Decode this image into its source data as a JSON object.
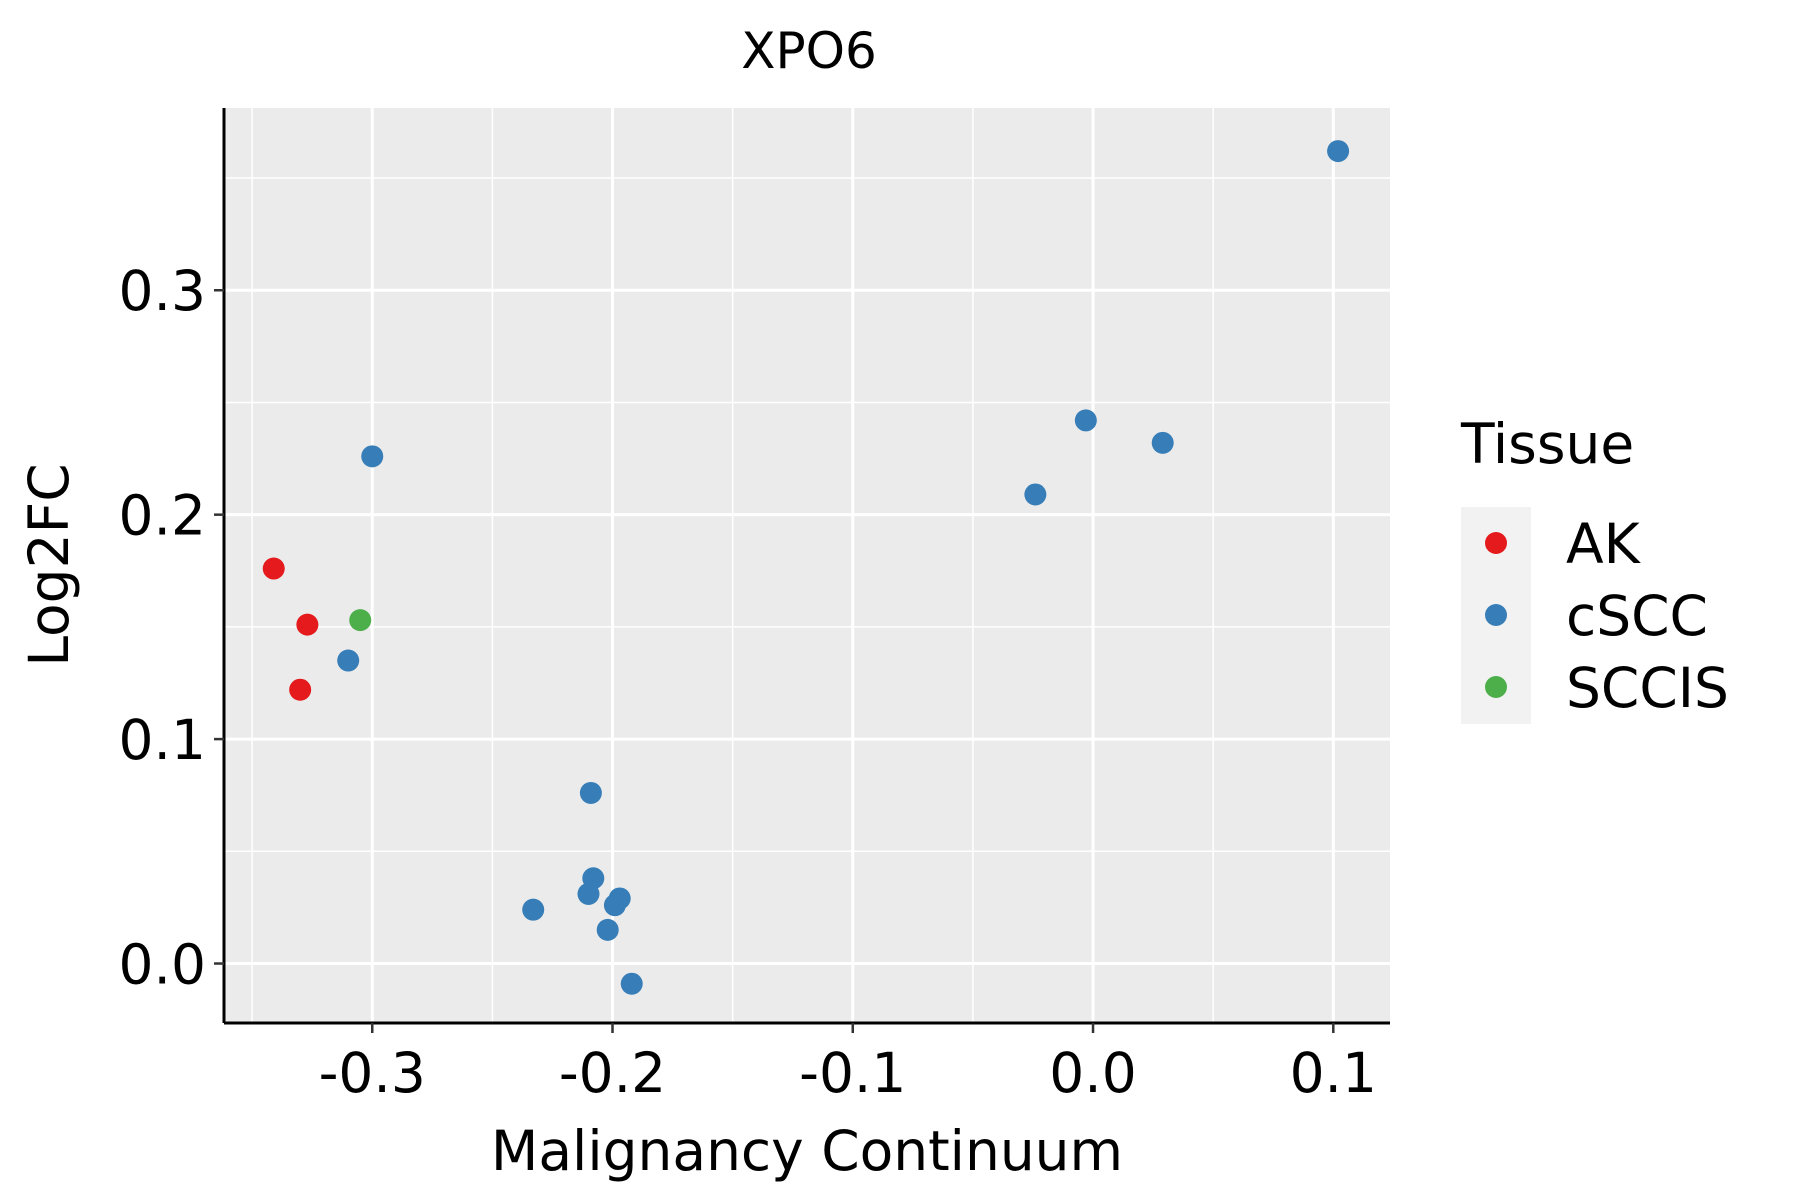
{
  "chart_data": {
    "type": "scatter",
    "title": "XPO6",
    "xlabel": "Malignancy Continuum",
    "ylabel": "Log2FC",
    "xlim": [
      -0.3617,
      0.1236
    ],
    "ylim": [
      -0.0265,
      0.3812
    ],
    "x_ticks": [
      -0.3,
      -0.2,
      -0.1,
      0.0,
      0.1
    ],
    "x_tick_labels": [
      "-0.3",
      "-0.2",
      "-0.1",
      "0.0",
      "0.1"
    ],
    "y_ticks": [
      0.0,
      0.1,
      0.2,
      0.3
    ],
    "y_tick_labels": [
      "0.0",
      "0.1",
      "0.2",
      "0.3"
    ],
    "grid": true,
    "legend": {
      "title": "Tissue",
      "position": "right",
      "entries": [
        {
          "label": "AK",
          "color": "#E41A1C"
        },
        {
          "label": "cSCC",
          "color": "#377EB8"
        },
        {
          "label": "SCCIS",
          "color": "#4DAF4A"
        }
      ]
    },
    "series": [
      {
        "name": "AK",
        "color": "#E41A1C",
        "points": [
          {
            "x": -0.341,
            "y": 0.176
          },
          {
            "x": -0.327,
            "y": 0.151
          },
          {
            "x": -0.33,
            "y": 0.122
          }
        ]
      },
      {
        "name": "cSCC",
        "color": "#377EB8",
        "points": [
          {
            "x": -0.3,
            "y": 0.226
          },
          {
            "x": -0.31,
            "y": 0.135
          },
          {
            "x": -0.209,
            "y": 0.076
          },
          {
            "x": -0.208,
            "y": 0.038
          },
          {
            "x": -0.21,
            "y": 0.031
          },
          {
            "x": -0.197,
            "y": 0.029
          },
          {
            "x": -0.199,
            "y": 0.026
          },
          {
            "x": -0.233,
            "y": 0.024
          },
          {
            "x": -0.202,
            "y": 0.015
          },
          {
            "x": -0.192,
            "y": -0.009
          },
          {
            "x": -0.024,
            "y": 0.209
          },
          {
            "x": -0.003,
            "y": 0.242
          },
          {
            "x": 0.029,
            "y": 0.232
          },
          {
            "x": 0.102,
            "y": 0.362
          }
        ]
      },
      {
        "name": "SCCIS",
        "color": "#4DAF4A",
        "points": [
          {
            "x": -0.305,
            "y": 0.153
          }
        ]
      }
    ]
  }
}
